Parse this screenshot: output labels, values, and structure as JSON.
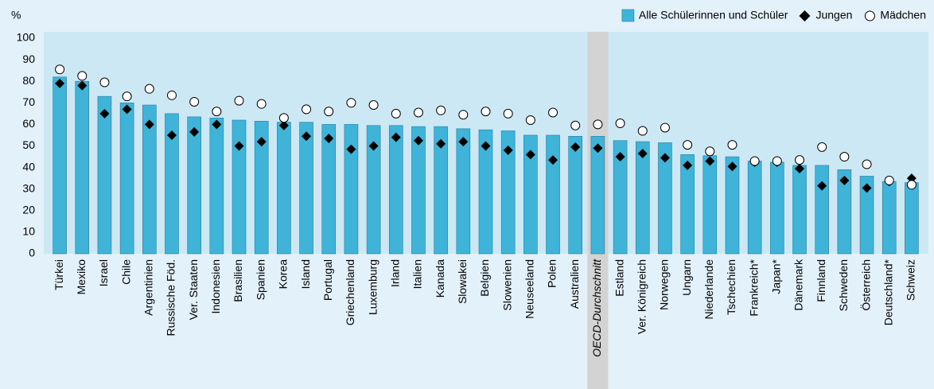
{
  "chart_data": {
    "type": "bar",
    "ylabel": "%",
    "categories": [
      "Türkei",
      "Mexiko",
      "Israel",
      "Chile",
      "Argentinien",
      "Russische Föd.",
      "Ver. Staaten",
      "Indonesien",
      "Brasilien",
      "Spanien",
      "Korea",
      "Island",
      "Portugal",
      "Griechenland",
      "Luxemburg",
      "Irland",
      "Italien",
      "Kanada",
      "Slowakei",
      "Belgien",
      "Slowenien",
      "Neuseeland",
      "Polen",
      "Australien",
      "OECD-Durchschnitt",
      "Estland",
      "Ver. Königreich",
      "Norwegen",
      "Ungarn",
      "Niederlande",
      "Tschechien",
      "Frankreich*",
      "Japan*",
      "Dänemark",
      "Finnland",
      "Schweden",
      "Österreich",
      "Deutschland*",
      "Schweiz"
    ],
    "highlight_category": "OECD-Durchschnitt",
    "series": [
      {
        "name": "Alle Schülerinnen und Schüler",
        "marker": "bar",
        "color": "#3fb4d8",
        "values": [
          82,
          80,
          73,
          70,
          69,
          65,
          63.5,
          63,
          62,
          61.5,
          61,
          61,
          60,
          60,
          59.5,
          59.5,
          59,
          59,
          58,
          57.5,
          57,
          55,
          55,
          54.5,
          54.5,
          52.5,
          52,
          51.5,
          46,
          45.5,
          45,
          43,
          42.5,
          41,
          41,
          39,
          36,
          33.5,
          33
        ]
      },
      {
        "name": "Jungen",
        "marker": "diamond",
        "color": "#000000",
        "values": [
          79,
          78,
          65,
          67,
          60,
          55,
          56.5,
          60,
          50,
          52,
          59.5,
          54.5,
          53.5,
          48.5,
          50,
          54,
          52.5,
          51,
          52,
          50,
          48,
          46,
          43.5,
          49.5,
          49,
          45,
          46.5,
          44.5,
          41,
          43,
          40.5,
          42.5,
          42.5,
          39.5,
          31.5,
          34,
          30.5,
          33.5,
          35
        ]
      },
      {
        "name": "Mädchen",
        "marker": "circle",
        "color": "#ffffff",
        "values": [
          85.5,
          82.5,
          79.5,
          73,
          76.5,
          73.5,
          70.5,
          66,
          71,
          69.5,
          63,
          67,
          66,
          70,
          69,
          65,
          65.5,
          66.5,
          64.5,
          66,
          65,
          62,
          65.5,
          59.5,
          60,
          60.5,
          57,
          58.5,
          50.5,
          47.5,
          50.5,
          43,
          43,
          43.5,
          49.5,
          45,
          41.5,
          34,
          32
        ]
      }
    ],
    "ylim": [
      0,
      100
    ],
    "yticks": [
      0,
      10,
      20,
      30,
      40,
      50,
      60,
      70,
      80,
      90,
      100
    ]
  }
}
